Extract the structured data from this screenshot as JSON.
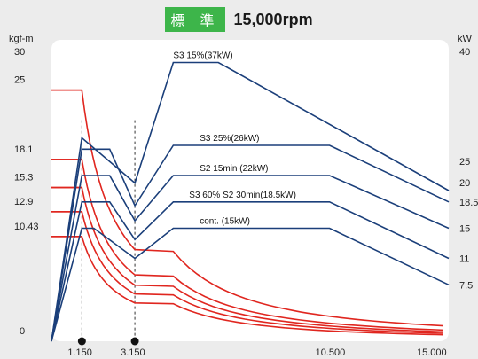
{
  "header": {
    "badge": "標 準",
    "speed": "15,000rpm"
  },
  "colors": {
    "torque": "#e0261f",
    "power": "#1b3f7a",
    "plot_bg": "#ffffff",
    "badge_bg": "#3db54a"
  },
  "chart_data": {
    "type": "line",
    "xlim": [
      0,
      15000
    ],
    "y_left": {
      "unit": "kgf-m",
      "lim": [
        0,
        30
      ],
      "ticks": [
        "0",
        "10.43",
        "12.9",
        "15.3",
        "18.1",
        "25",
        "30"
      ]
    },
    "y_right": {
      "unit": "kW",
      "lim": [
        0,
        40
      ],
      "ticks": [
        "7.5",
        "11",
        "15",
        "18.5",
        "20",
        "25",
        "40"
      ]
    },
    "x_ticks": [
      "1.150",
      "3.150",
      "10.500",
      "15.000"
    ],
    "torque_series": [
      {
        "base": 25,
        "knee": 1150
      },
      {
        "base": 18.1,
        "knee": 1150
      },
      {
        "base": 15.3,
        "knee": 1150
      },
      {
        "base": 12.9,
        "knee": 1150
      },
      {
        "base": 10.43,
        "knee": 1150
      }
    ],
    "power_series": [
      {
        "label": "S3 15%(37kW)",
        "points": [
          [
            0,
            0
          ],
          [
            1150,
            27
          ],
          [
            3150,
            21
          ],
          [
            4600,
            37
          ],
          [
            6300,
            37
          ],
          [
            15000,
            20
          ]
        ]
      },
      {
        "label": "S3 25%(26kW)",
        "points": [
          [
            0,
            0
          ],
          [
            1150,
            25.5
          ],
          [
            2200,
            25.5
          ],
          [
            3150,
            18
          ],
          [
            4600,
            26
          ],
          [
            10500,
            26
          ],
          [
            15000,
            18.5
          ]
        ]
      },
      {
        "label": "S2 15min (22kW)",
        "points": [
          [
            0,
            0
          ],
          [
            1150,
            22
          ],
          [
            2200,
            22
          ],
          [
            3150,
            16
          ],
          [
            4600,
            22
          ],
          [
            10500,
            22
          ],
          [
            15000,
            15
          ]
        ]
      },
      {
        "label": "S3 60% S2 30min(18.5kW)",
        "points": [
          [
            0,
            0
          ],
          [
            1150,
            18.5
          ],
          [
            2200,
            18.5
          ],
          [
            3150,
            13.5
          ],
          [
            4600,
            18.5
          ],
          [
            10500,
            18.5
          ],
          [
            15000,
            11
          ]
        ]
      },
      {
        "label": "cont. (15kW)",
        "points": [
          [
            0,
            0
          ],
          [
            1150,
            15
          ],
          [
            1600,
            15
          ],
          [
            3150,
            11
          ],
          [
            4600,
            15
          ],
          [
            10500,
            15
          ],
          [
            15000,
            7.5
          ]
        ]
      }
    ]
  }
}
